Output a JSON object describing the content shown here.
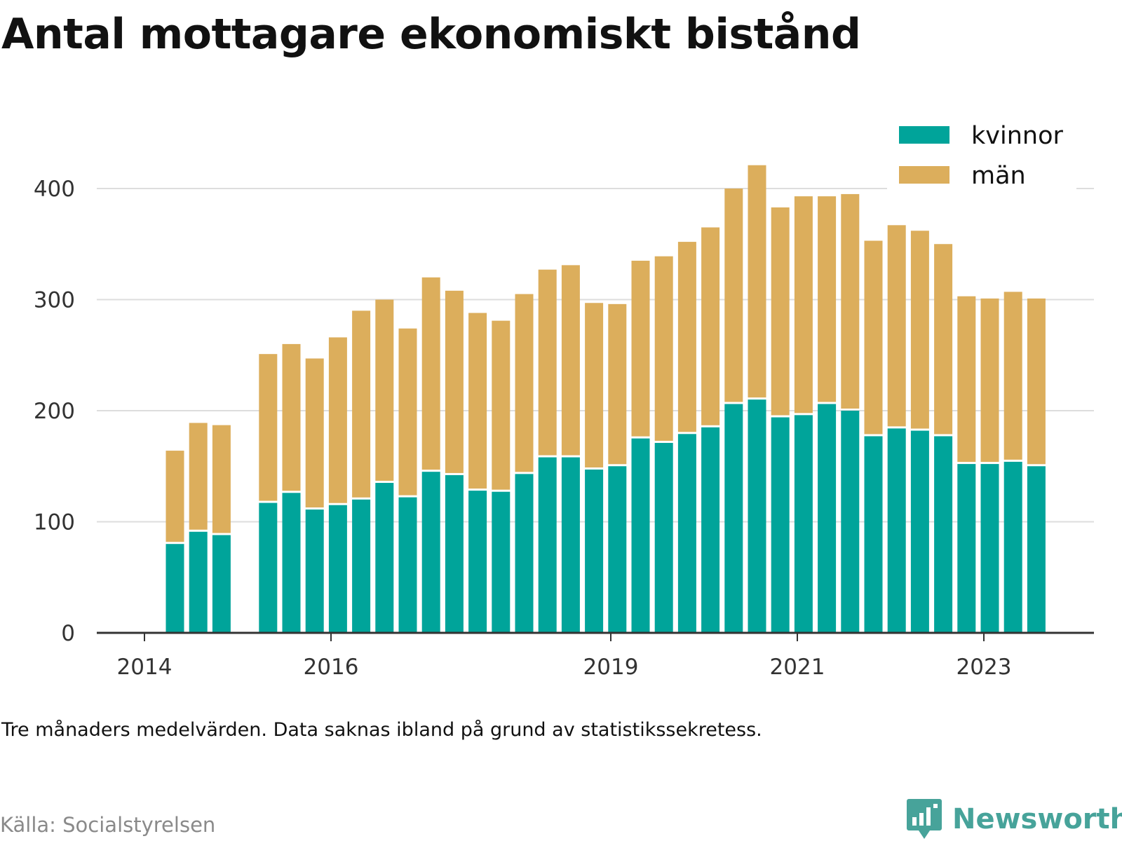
{
  "title": "Antal mottagare ekonomiskt bistånd",
  "note": "Tre månaders medelvärden. Data saknas ibland på grund av statistikssekretess.",
  "source": "Källa: Socialstyrelsen",
  "brand": {
    "name": "Newsworthy",
    "icon": "newsworthy-logo-icon"
  },
  "colors": {
    "kvinnor": "#00a49a",
    "man": "#dcae5c",
    "grid": "#dddddd",
    "axis": "#333333",
    "text": "#333333"
  },
  "chart_data": {
    "type": "bar",
    "stacked": true,
    "x_tick_labels": [
      "2014",
      "2016",
      "2019",
      "2021",
      "2023"
    ],
    "y_ticks": [
      0,
      100,
      200,
      300,
      400
    ],
    "ylim": [
      0,
      450
    ],
    "grid": true,
    "legend_position": "top-right",
    "legend": [
      "kvinnor",
      "män"
    ],
    "categories": [
      "2014-Q3",
      "2014-Q4",
      "2015-Q1",
      "2015-Q2",
      "2015-Q3",
      "2015-Q4",
      "2016-Q1",
      "2016-Q2",
      "2016-Q3",
      "2016-Q4",
      "2017-Q1",
      "2017-Q2",
      "2017-Q3",
      "2017-Q4",
      "2018-Q1",
      "2018-Q2",
      "2018-Q3",
      "2018-Q4",
      "2019-Q1",
      "2019-Q2",
      "2019-Q3",
      "2019-Q4",
      "2020-Q1",
      "2020-Q2",
      "2020-Q3",
      "2020-Q4",
      "2021-Q1",
      "2021-Q2",
      "2021-Q3",
      "2021-Q4",
      "2022-Q1",
      "2022-Q2",
      "2022-Q3",
      "2022-Q4",
      "2023-Q1",
      "2023-Q2",
      "2023-Q3",
      "2023-Q4"
    ],
    "series": [
      {
        "name": "kvinnor",
        "values": [
          80,
          91,
          88,
          null,
          117,
          126,
          111,
          115,
          120,
          135,
          122,
          145,
          142,
          128,
          127,
          143,
          158,
          158,
          147,
          150,
          175,
          171,
          179,
          185,
          206,
          210,
          194,
          196,
          206,
          200,
          177,
          184,
          182,
          177,
          152,
          152,
          154,
          150
        ]
      },
      {
        "name": "män",
        "values": [
          84,
          98,
          99,
          null,
          134,
          134,
          136,
          151,
          170,
          165,
          152,
          175,
          166,
          160,
          154,
          162,
          169,
          173,
          150,
          146,
          160,
          168,
          173,
          180,
          194,
          211,
          189,
          197,
          187,
          195,
          176,
          183,
          180,
          173,
          151,
          149,
          153,
          151
        ]
      }
    ]
  }
}
